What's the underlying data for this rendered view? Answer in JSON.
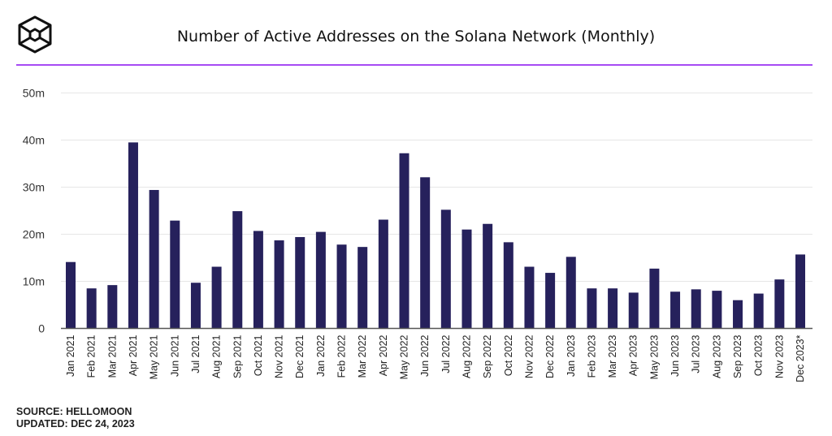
{
  "chart_data": {
    "type": "bar",
    "title": "Number of Active Addresses on the Solana Network (Monthly)",
    "xlabel": "",
    "ylabel": "",
    "ylim": [
      0,
      50
    ],
    "yticks": [
      0,
      10,
      20,
      30,
      40,
      50
    ],
    "ytick_labels": [
      "0",
      "10m",
      "20m",
      "30m",
      "40m",
      "50m"
    ],
    "grid": true,
    "color": "#26215c",
    "categories": [
      "Jan 2021",
      "Feb 2021",
      "Mar 2021",
      "Apr 2021",
      "May 2021",
      "Jun 2021",
      "Jul 2021",
      "Aug 2021",
      "Sep 2021",
      "Oct 2021",
      "Nov 2021",
      "Dec 2021",
      "Jan 2022",
      "Feb 2022",
      "Mar 2022",
      "Apr 2022",
      "May 2022",
      "Jun 2022",
      "Jul 2022",
      "Aug 2022",
      "Sep 2022",
      "Oct 2022",
      "Nov 2022",
      "Dec 2022",
      "Jan 2023",
      "Feb 2023",
      "Mar 2023",
      "Apr 2023",
      "May 2023",
      "Jun 2023",
      "Jul 2023",
      "Aug 2023",
      "Sep 2023",
      "Oct 2023",
      "Nov 2023",
      "Dec 2023*"
    ],
    "values": [
      14.1,
      8.5,
      9.2,
      39.5,
      29.4,
      22.9,
      9.7,
      13.1,
      24.9,
      20.7,
      18.7,
      19.4,
      20.5,
      17.8,
      17.3,
      23.1,
      37.2,
      32.1,
      25.2,
      21.0,
      22.2,
      18.3,
      13.1,
      11.8,
      15.2,
      8.5,
      8.5,
      7.6,
      12.7,
      7.8,
      8.3,
      8.0,
      6.0,
      7.4,
      10.4,
      15.7
    ]
  },
  "footer": {
    "source": "SOURCE: HELLOMOON",
    "updated": "UPDATED: DEC 24, 2023"
  }
}
